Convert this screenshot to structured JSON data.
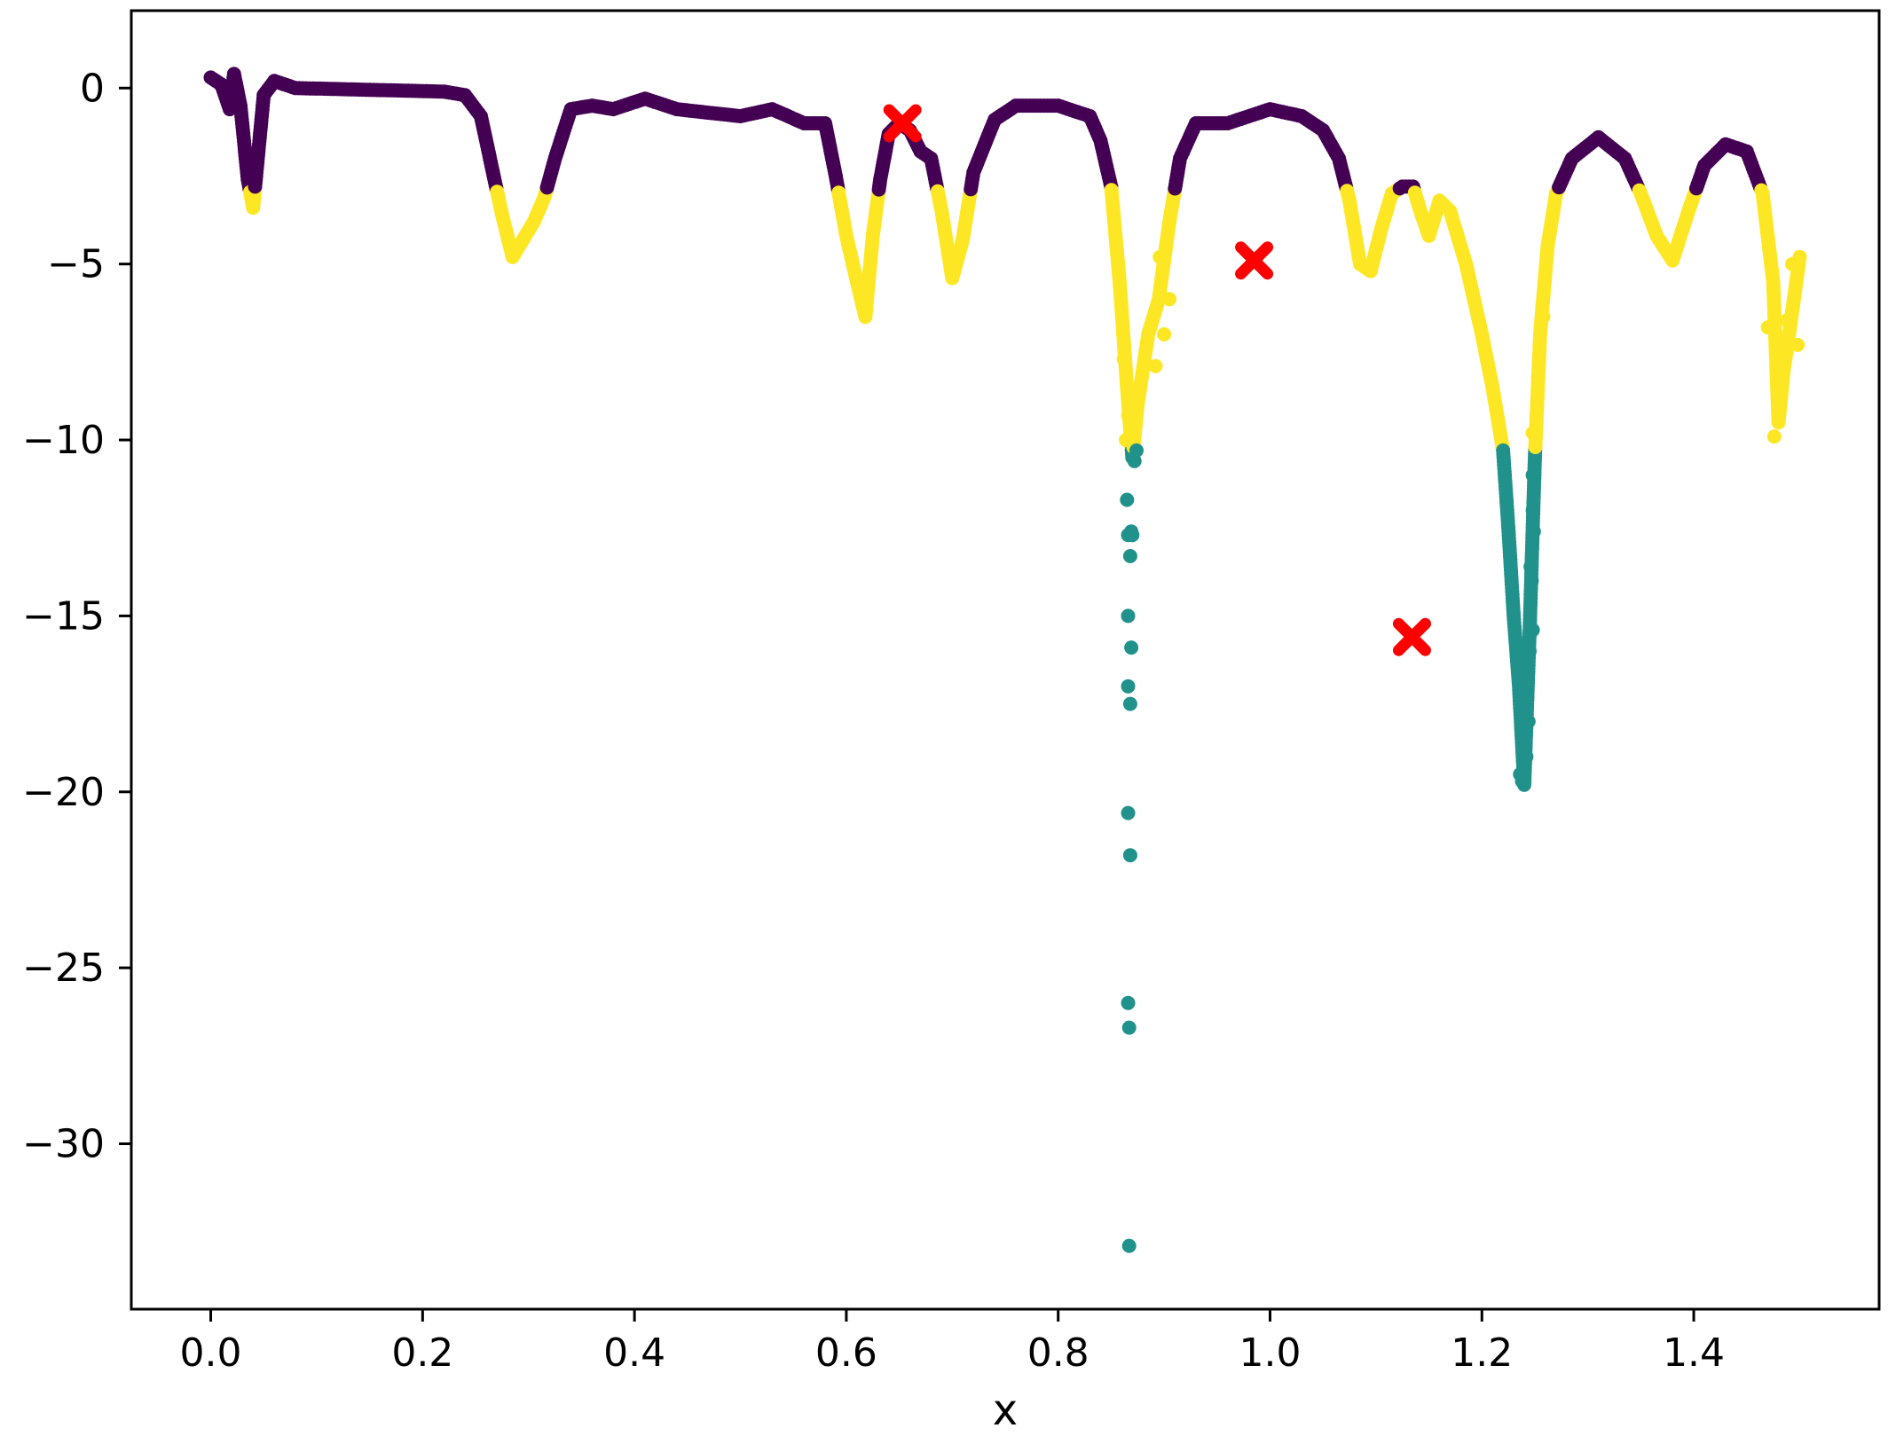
{
  "chart_data": {
    "type": "scatter",
    "title": "",
    "xlabel": "x",
    "ylabel": "",
    "xlim": [
      -0.075,
      1.575
    ],
    "ylim": [
      -34.7,
      2.2
    ],
    "xticks": [
      0.0,
      0.2,
      0.4,
      0.6,
      0.8,
      1.0,
      1.2,
      1.4
    ],
    "xtick_labels": [
      "0.0",
      "0.2",
      "0.4",
      "0.6",
      "0.8",
      "1.0",
      "1.2",
      "1.4"
    ],
    "yticks": [
      0,
      -5,
      -10,
      -15,
      -20,
      -25,
      -30
    ],
    "ytick_labels": [
      "0",
      "−5",
      "−10",
      "−15",
      "−20",
      "−25",
      "−30"
    ],
    "grid": false,
    "legend": "none",
    "colors": {
      "cluster_0": "#440154",
      "cluster_1": "#21918c",
      "cluster_2": "#fde725",
      "centroids": "#ff0000"
    },
    "curve_profile": [
      [
        0.0,
        0.3
      ],
      [
        0.01,
        0.1
      ],
      [
        0.018,
        -0.6
      ],
      [
        0.022,
        0.4
      ],
      [
        0.028,
        -0.5
      ],
      [
        0.035,
        -2.6
      ],
      [
        0.04,
        -3.4
      ],
      [
        0.045,
        -1.8
      ],
      [
        0.05,
        -0.2
      ],
      [
        0.06,
        0.2
      ],
      [
        0.08,
        0.0
      ],
      [
        0.15,
        -0.05
      ],
      [
        0.22,
        -0.1
      ],
      [
        0.24,
        -0.2
      ],
      [
        0.255,
        -0.8
      ],
      [
        0.265,
        -2.2
      ],
      [
        0.275,
        -3.6
      ],
      [
        0.285,
        -4.8
      ],
      [
        0.295,
        -4.3
      ],
      [
        0.305,
        -3.8
      ],
      [
        0.315,
        -3.1
      ],
      [
        0.325,
        -2.0
      ],
      [
        0.34,
        -0.6
      ],
      [
        0.36,
        -0.5
      ],
      [
        0.38,
        -0.6
      ],
      [
        0.41,
        -0.3
      ],
      [
        0.44,
        -0.6
      ],
      [
        0.47,
        -0.7
      ],
      [
        0.5,
        -0.8
      ],
      [
        0.53,
        -0.6
      ],
      [
        0.56,
        -1.0
      ],
      [
        0.58,
        -1.0
      ],
      [
        0.59,
        -2.5
      ],
      [
        0.6,
        -4.2
      ],
      [
        0.61,
        -5.5
      ],
      [
        0.618,
        -6.5
      ],
      [
        0.625,
        -4.2
      ],
      [
        0.632,
        -2.6
      ],
      [
        0.64,
        -1.3
      ],
      [
        0.65,
        -1.0
      ],
      [
        0.66,
        -1.2
      ],
      [
        0.67,
        -1.8
      ],
      [
        0.68,
        -2.0
      ],
      [
        0.69,
        -3.5
      ],
      [
        0.7,
        -5.4
      ],
      [
        0.71,
        -4.3
      ],
      [
        0.72,
        -2.4
      ],
      [
        0.74,
        -0.9
      ],
      [
        0.76,
        -0.5
      ],
      [
        0.8,
        -0.5
      ],
      [
        0.83,
        -0.8
      ],
      [
        0.84,
        -1.5
      ],
      [
        0.85,
        -2.8
      ],
      [
        0.858,
        -5.5
      ],
      [
        0.865,
        -8.5
      ],
      [
        0.87,
        -10.5
      ],
      [
        0.875,
        -9.0
      ],
      [
        0.885,
        -7.0
      ],
      [
        0.895,
        -6.0
      ],
      [
        0.905,
        -3.8
      ],
      [
        0.915,
        -2.0
      ],
      [
        0.93,
        -1.0
      ],
      [
        0.96,
        -1.0
      ],
      [
        1.0,
        -0.6
      ],
      [
        1.03,
        -0.8
      ],
      [
        1.05,
        -1.2
      ],
      [
        1.065,
        -2.0
      ],
      [
        1.075,
        -3.2
      ],
      [
        1.085,
        -5.0
      ],
      [
        1.095,
        -5.2
      ],
      [
        1.105,
        -4.0
      ],
      [
        1.115,
        -3.0
      ],
      [
        1.125,
        -2.8
      ],
      [
        1.135,
        -2.8
      ],
      [
        1.142,
        -3.5
      ],
      [
        1.15,
        -4.2
      ],
      [
        1.16,
        -3.2
      ],
      [
        1.17,
        -3.5
      ],
      [
        1.185,
        -5.0
      ],
      [
        1.2,
        -7.0
      ],
      [
        1.21,
        -8.5
      ],
      [
        1.22,
        -10.3
      ],
      [
        1.225,
        -12.5
      ],
      [
        1.23,
        -15.0
      ],
      [
        1.235,
        -17.0
      ],
      [
        1.24,
        -19.8
      ],
      [
        1.245,
        -15.5
      ],
      [
        1.25,
        -10.5
      ],
      [
        1.255,
        -7.0
      ],
      [
        1.262,
        -4.5
      ],
      [
        1.27,
        -3.0
      ],
      [
        1.285,
        -2.0
      ],
      [
        1.31,
        -1.4
      ],
      [
        1.335,
        -2.0
      ],
      [
        1.35,
        -3.0
      ],
      [
        1.365,
        -4.2
      ],
      [
        1.38,
        -4.9
      ],
      [
        1.395,
        -3.5
      ],
      [
        1.41,
        -2.2
      ],
      [
        1.43,
        -1.6
      ],
      [
        1.45,
        -1.8
      ],
      [
        1.465,
        -3.0
      ],
      [
        1.475,
        -5.5
      ],
      [
        1.48,
        -9.5
      ],
      [
        1.485,
        -8.0
      ],
      [
        1.49,
        -7.0
      ],
      [
        1.5,
        -4.8
      ]
    ],
    "series": [
      {
        "cluster": 1,
        "extra_points": [
          [
            0.865,
            -11.7
          ],
          [
            0.866,
            -12.7
          ],
          [
            0.869,
            -12.6
          ],
          [
            0.868,
            -13.3
          ],
          [
            0.866,
            -15.0
          ],
          [
            0.869,
            -15.9
          ],
          [
            0.866,
            -17.0
          ],
          [
            0.868,
            -17.5
          ],
          [
            0.866,
            -20.6
          ],
          [
            0.868,
            -21.8
          ],
          [
            0.866,
            -26.0
          ],
          [
            0.867,
            -26.7
          ],
          [
            0.867,
            -32.9
          ],
          [
            0.872,
            -10.6
          ],
          [
            0.874,
            -10.3
          ],
          [
            0.87,
            -12.7
          ],
          [
            1.248,
            -11.0
          ],
          [
            1.248,
            -12.0
          ],
          [
            1.249,
            -12.6
          ],
          [
            1.246,
            -13.6
          ],
          [
            1.247,
            -14.0
          ],
          [
            1.248,
            -15.4
          ],
          [
            1.245,
            -16.0
          ],
          [
            1.243,
            -17.0
          ],
          [
            1.244,
            -18.0
          ],
          [
            1.242,
            -19.0
          ],
          [
            1.238,
            -19.7
          ],
          [
            1.236,
            -19.5
          ]
        ]
      },
      {
        "cluster": 2,
        "extra_points": [
          [
            0.862,
            -7.7
          ],
          [
            0.866,
            -9.3
          ],
          [
            0.864,
            -10.0
          ],
          [
            0.874,
            -8.8
          ],
          [
            0.882,
            -7.8
          ],
          [
            0.892,
            -7.9
          ],
          [
            0.896,
            -4.8
          ],
          [
            0.9,
            -7.0
          ],
          [
            0.905,
            -6.0
          ],
          [
            1.248,
            -9.8
          ],
          [
            1.253,
            -8.2
          ],
          [
            1.258,
            -6.5
          ],
          [
            1.476,
            -9.9
          ],
          [
            1.482,
            -8.7
          ],
          [
            1.488,
            -6.6
          ],
          [
            1.493,
            -5.0
          ],
          [
            1.498,
            -7.3
          ],
          [
            1.47,
            -6.8
          ]
        ]
      }
    ],
    "centroids": [
      {
        "x": 0.653,
        "y": -1.0
      },
      {
        "x": 0.985,
        "y": -4.9
      },
      {
        "x": 1.134,
        "y": -15.6
      }
    ]
  }
}
